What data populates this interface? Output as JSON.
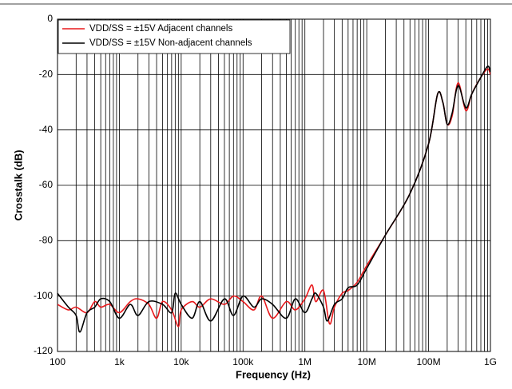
{
  "chart_data": {
    "type": "line",
    "x_label": "Frequency (Hz)",
    "y_label": "Crosstalk (dB)",
    "log_x": true,
    "grid": true,
    "legend": "upper left",
    "xlim": [
      100,
      1000000000
    ],
    "xticks": [
      100,
      {
        "value": 1000,
        "label": "1k"
      },
      {
        "value": 10000,
        "label": "10k"
      },
      {
        "value": 100000,
        "label": "100k"
      },
      {
        "value": 1000000,
        "label": "1M"
      },
      {
        "value": 10000000,
        "label": "10M"
      },
      {
        "value": 100000000,
        "label": "100M"
      },
      {
        "value": 1000000000,
        "label": "1G"
      }
    ],
    "ylim": [
      -120,
      0
    ],
    "yticks": [
      -120,
      -100,
      -80,
      -60,
      -40,
      -20,
      0
    ],
    "series": [
      {
        "name": "VDD/SS = ±15V Adjacent channels",
        "color": "#e8191c",
        "x": [
          100,
          150,
          200,
          300,
          400,
          500,
          700,
          1000,
          1500,
          2000,
          3000,
          4000,
          5000,
          7000,
          9000,
          10000,
          15000,
          20000,
          30000,
          50000,
          70000,
          100000,
          150000,
          200000,
          300000,
          500000,
          700000,
          1000000,
          1300000,
          1500000,
          2000000,
          2500000,
          3000000,
          4000000,
          5000000,
          7000000,
          10000000,
          20000000,
          50000000,
          100000000,
          140000000,
          170000000,
          200000000,
          240000000,
          300000000,
          400000000,
          500000000,
          700000000,
          900000000,
          1000000000
        ],
        "values": [
          -103,
          -105,
          -104,
          -106,
          -102,
          -104,
          -103,
          -106,
          -102,
          -101,
          -103,
          -108,
          -102,
          -105,
          -111,
          -105,
          -102,
          -104,
          -101,
          -103,
          -100,
          -102,
          -105,
          -100,
          -108,
          -102,
          -105,
          -101,
          -96,
          -102,
          -98,
          -110,
          -104,
          -99,
          -98,
          -95,
          -89,
          -78,
          -63,
          -45,
          -27,
          -30,
          -38,
          -35,
          -23,
          -33,
          -27,
          -21,
          -18,
          -20
        ]
      },
      {
        "name": "VDD/SS = ±15V Non-adjacent channels",
        "color": "#000000",
        "x": [
          100,
          150,
          200,
          230,
          300,
          400,
          500,
          700,
          1000,
          1500,
          2000,
          3000,
          5000,
          7000,
          8000,
          10000,
          15000,
          20000,
          30000,
          50000,
          70000,
          100000,
          150000,
          200000,
          300000,
          500000,
          700000,
          1000000,
          1300000,
          1500000,
          2000000,
          2300000,
          3000000,
          4000000,
          5000000,
          7000000,
          10000000,
          20000000,
          50000000,
          100000000,
          140000000,
          170000000,
          200000000,
          240000000,
          300000000,
          400000000,
          500000000,
          700000000,
          900000000,
          1000000000
        ],
        "values": [
          -99,
          -104,
          -107,
          -113,
          -106,
          -104,
          -101,
          -102,
          -108,
          -103,
          -107,
          -102,
          -103,
          -106,
          -99,
          -103,
          -108,
          -102,
          -109,
          -101,
          -107,
          -100,
          -104,
          -101,
          -103,
          -108,
          -101,
          -106,
          -101,
          -99,
          -104,
          -109,
          -103,
          -101,
          -97,
          -96,
          -90,
          -78,
          -63,
          -45,
          -27,
          -30,
          -38,
          -34,
          -24,
          -32,
          -27,
          -21,
          -17,
          -19
        ]
      }
    ]
  }
}
